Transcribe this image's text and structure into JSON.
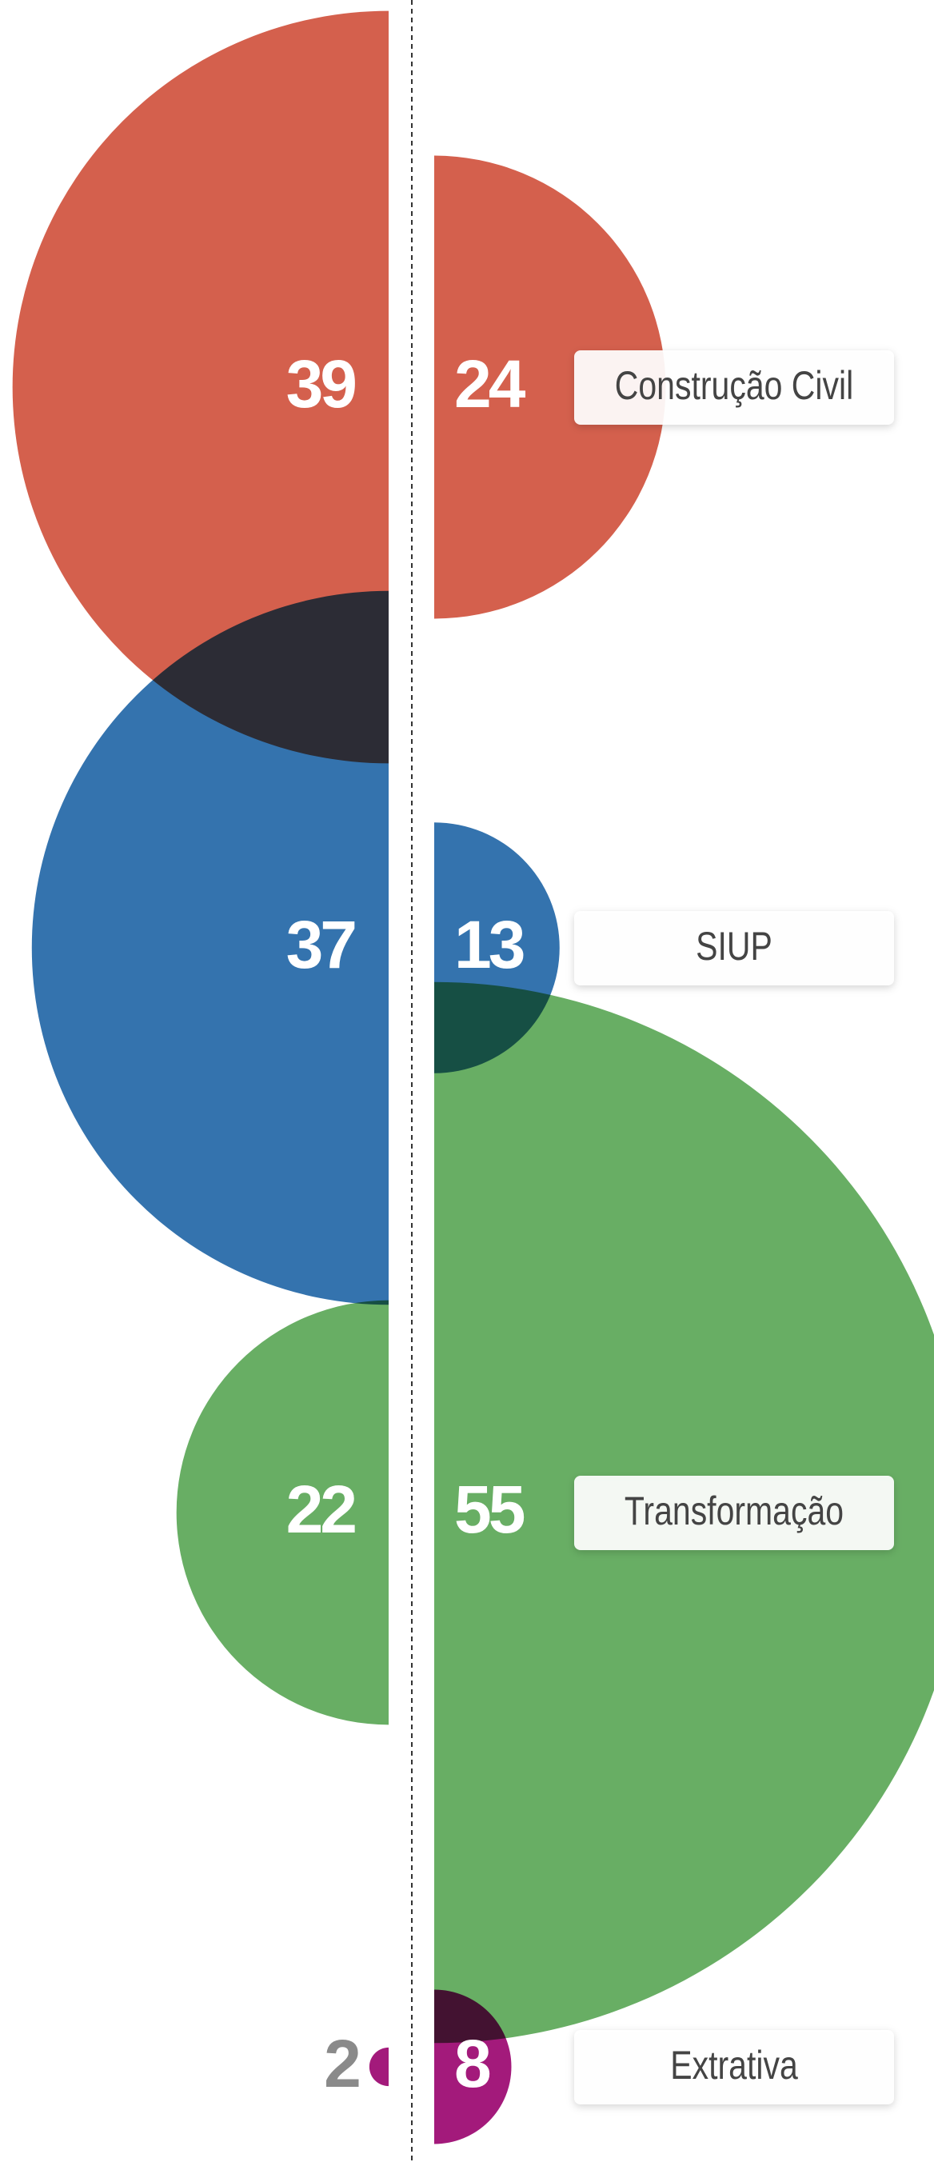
{
  "chart_data": {
    "type": "half-bubble",
    "categories": [
      "Construção Civil",
      "SIUP",
      "Transformação",
      "Extrativa"
    ],
    "colors": [
      "#d4604d",
      "#3473ae",
      "#68ae64",
      "#a31a7b"
    ],
    "series": [
      {
        "values": [
          39,
          37,
          22,
          2
        ]
      },
      {
        "values": [
          24,
          13,
          55,
          8
        ]
      }
    ]
  }
}
